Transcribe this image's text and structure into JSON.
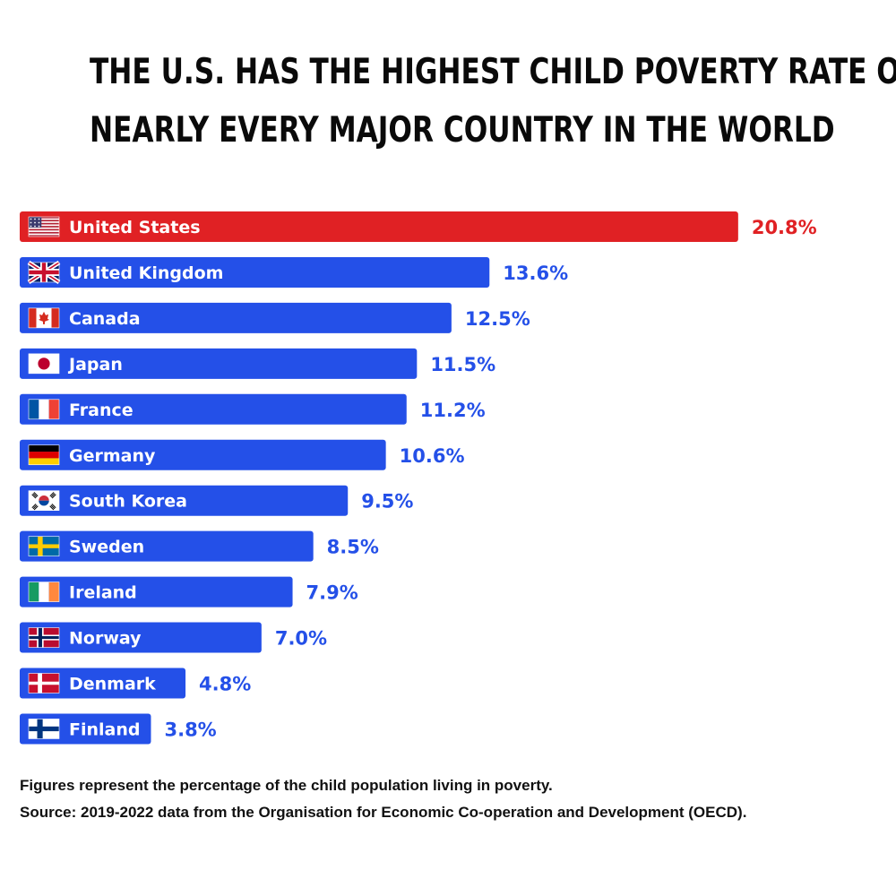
{
  "title_lines": [
    "THE U.S. HAS THE HIGHEST CHILD POVERTY RATE OF",
    "NEARLY EVERY MAJOR COUNTRY IN THE WORLD"
  ],
  "footer": {
    "note": "Figures represent the percentage of the child population living in poverty.",
    "source": "Source: 2019-2022 data from the Organisation for Economic Co-operation and Development (OECD)."
  },
  "colors": {
    "highlight": "#e02124",
    "bar": "#2450e8",
    "highlight_label": "#e02124",
    "bar_label": "#2450e8"
  },
  "chart_data": {
    "type": "bar",
    "orientation": "horizontal",
    "unit": "%",
    "xlim": [
      0,
      21.5
    ],
    "categories": [
      "United States",
      "United Kingdom",
      "Canada",
      "Japan",
      "France",
      "Germany",
      "South Korea",
      "Sweden",
      "Ireland",
      "Norway",
      "Denmark",
      "Finland"
    ],
    "values": [
      20.8,
      13.6,
      12.5,
      11.5,
      11.2,
      10.6,
      9.5,
      8.5,
      7.9,
      7.0,
      4.8,
      3.8
    ],
    "value_labels": [
      "20.8%",
      "13.6%",
      "12.5%",
      "11.5%",
      "11.2%",
      "10.6%",
      "9.5%",
      "8.5%",
      "7.9%",
      "7.0%",
      "4.8%",
      "3.8%"
    ],
    "flags": [
      "us-flag-icon",
      "uk-flag-icon",
      "canada-flag-icon",
      "japan-flag-icon",
      "france-flag-icon",
      "germany-flag-icon",
      "south-korea-flag-icon",
      "sweden-flag-icon",
      "ireland-flag-icon",
      "norway-flag-icon",
      "denmark-flag-icon",
      "finland-flag-icon"
    ],
    "highlighted_category": "United States"
  }
}
